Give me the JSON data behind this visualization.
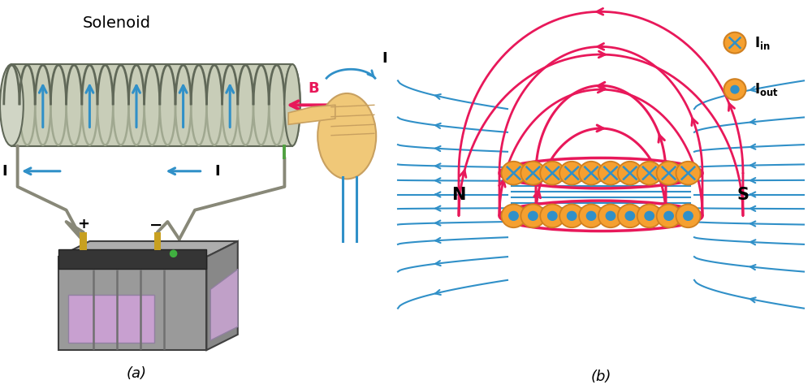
{
  "title_a": "(a)",
  "title_b": "(b)",
  "solenoid_label": "Solenoid",
  "B_label": "B",
  "I_label": "I",
  "N_label": "N",
  "S_label": "S",
  "pink": "#E8185A",
  "blue": "#3090C8",
  "orange": "#F5A030",
  "orange_edge": "#D08020",
  "wire_gray": "#888878",
  "sol_fill": "#C8CDB8",
  "sol_edge": "#909888",
  "sol_coil_fill": "#B0B8A5",
  "sol_coil_edge": "#707868",
  "bat_gray": "#9A9A9A",
  "bat_dark": "#353535",
  "bat_purple": "#C8A0D0",
  "bat_side": "#B0B0B8",
  "hand_skin": "#F0C878",
  "hand_edge": "#C8A060",
  "bg": "#FFFFFF",
  "num_coils": 19
}
